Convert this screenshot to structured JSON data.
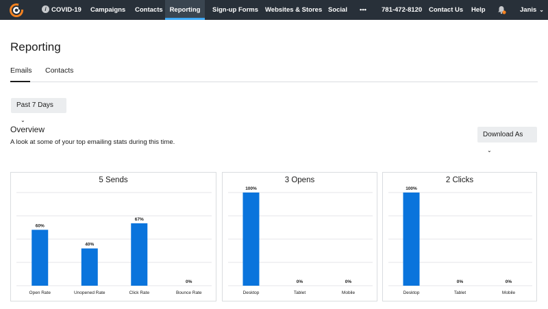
{
  "nav": {
    "items": [
      {
        "label": "COVID-19",
        "x": 0
      },
      {
        "label": "Campaigns"
      },
      {
        "label": "Contacts"
      },
      {
        "label": "Reporting",
        "active": true
      },
      {
        "label": "Sign-up Forms"
      },
      {
        "label": "Websites & Stores"
      },
      {
        "label": "Social"
      },
      {
        "label": "•••"
      },
      {
        "label": "781-472-8120"
      },
      {
        "label": "Contact Us"
      },
      {
        "label": "Help"
      }
    ],
    "user": "Janis"
  },
  "page": {
    "title": "Reporting",
    "tabs": [
      "Emails",
      "Contacts"
    ],
    "date_filter": "Past 7 Days",
    "overview_title": "Overview",
    "overview_subtitle": "A look at some of your top emailing stats during this time.",
    "download_label": "Download As"
  },
  "colors": {
    "bar": "#0a74dc",
    "nav_bg": "#283039",
    "nav_active_underline": "#3fa9f5"
  },
  "chart_data": [
    {
      "type": "bar",
      "title": "5 Sends",
      "categories": [
        "Open Rate",
        "Unopened Rate",
        "Click Rate",
        "Bounce Rate"
      ],
      "values": [
        60,
        40,
        67,
        0
      ],
      "value_labels": [
        "60%",
        "40%",
        "67%",
        "0%"
      ],
      "ylim": [
        0,
        100
      ],
      "grid": true
    },
    {
      "type": "bar",
      "title": "3 Opens",
      "categories": [
        "Desktop",
        "Tablet",
        "Mobile"
      ],
      "values": [
        100,
        0,
        0
      ],
      "value_labels": [
        "100%",
        "0%",
        "0%"
      ],
      "ylim": [
        0,
        100
      ],
      "grid": true
    },
    {
      "type": "bar",
      "title": "2 Clicks",
      "categories": [
        "Desktop",
        "Tablet",
        "Mobile"
      ],
      "values": [
        100,
        0,
        0
      ],
      "value_labels": [
        "100%",
        "0%",
        "0%"
      ],
      "ylim": [
        0,
        100
      ],
      "grid": true
    }
  ]
}
